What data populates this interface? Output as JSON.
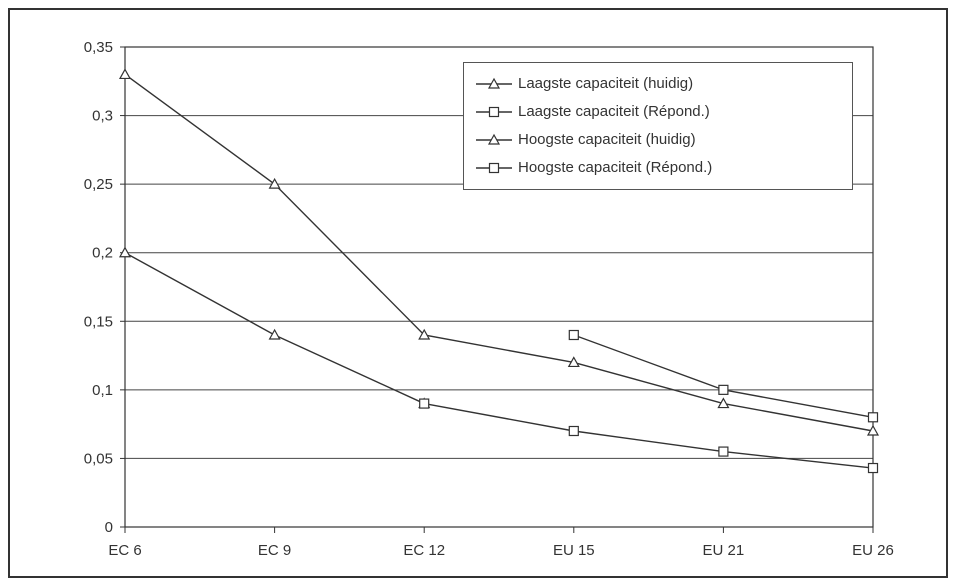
{
  "chart_data": {
    "type": "line",
    "title": "",
    "xlabel": "",
    "ylabel": "",
    "categories": [
      "EC 6",
      "EC 9",
      "EC 12",
      "EU 15",
      "EU 21",
      "EU 26"
    ],
    "ylim": [
      0,
      0.35
    ],
    "yticks": [
      0,
      0.05,
      0.1,
      0.15,
      0.2,
      0.25,
      0.3,
      0.35
    ],
    "ytick_labels": [
      "0",
      "0,05",
      "0,1",
      "0,15",
      "0,2",
      "0,25",
      "0,3",
      "0,35"
    ],
    "grid": "horizontal",
    "legend_position": "top-right",
    "series": [
      {
        "name": "Laagste capaciteit (huidig)",
        "marker": "triangle",
        "values": [
          0.2,
          0.14,
          0.09,
          null,
          null,
          null
        ]
      },
      {
        "name": "Laagste capaciteit (Répond.)",
        "marker": "square",
        "values": [
          null,
          null,
          0.09,
          0.07,
          0.055,
          0.043
        ]
      },
      {
        "name": "Hoogste capaciteit (huidig)",
        "marker": "triangle",
        "values": [
          0.33,
          0.25,
          0.14,
          0.12,
          0.09,
          0.07
        ]
      },
      {
        "name": "Hoogste capaciteit (Répond.)",
        "marker": "square",
        "values": [
          null,
          null,
          null,
          0.14,
          0.1,
          0.08
        ]
      }
    ],
    "line_color": "#333333"
  }
}
